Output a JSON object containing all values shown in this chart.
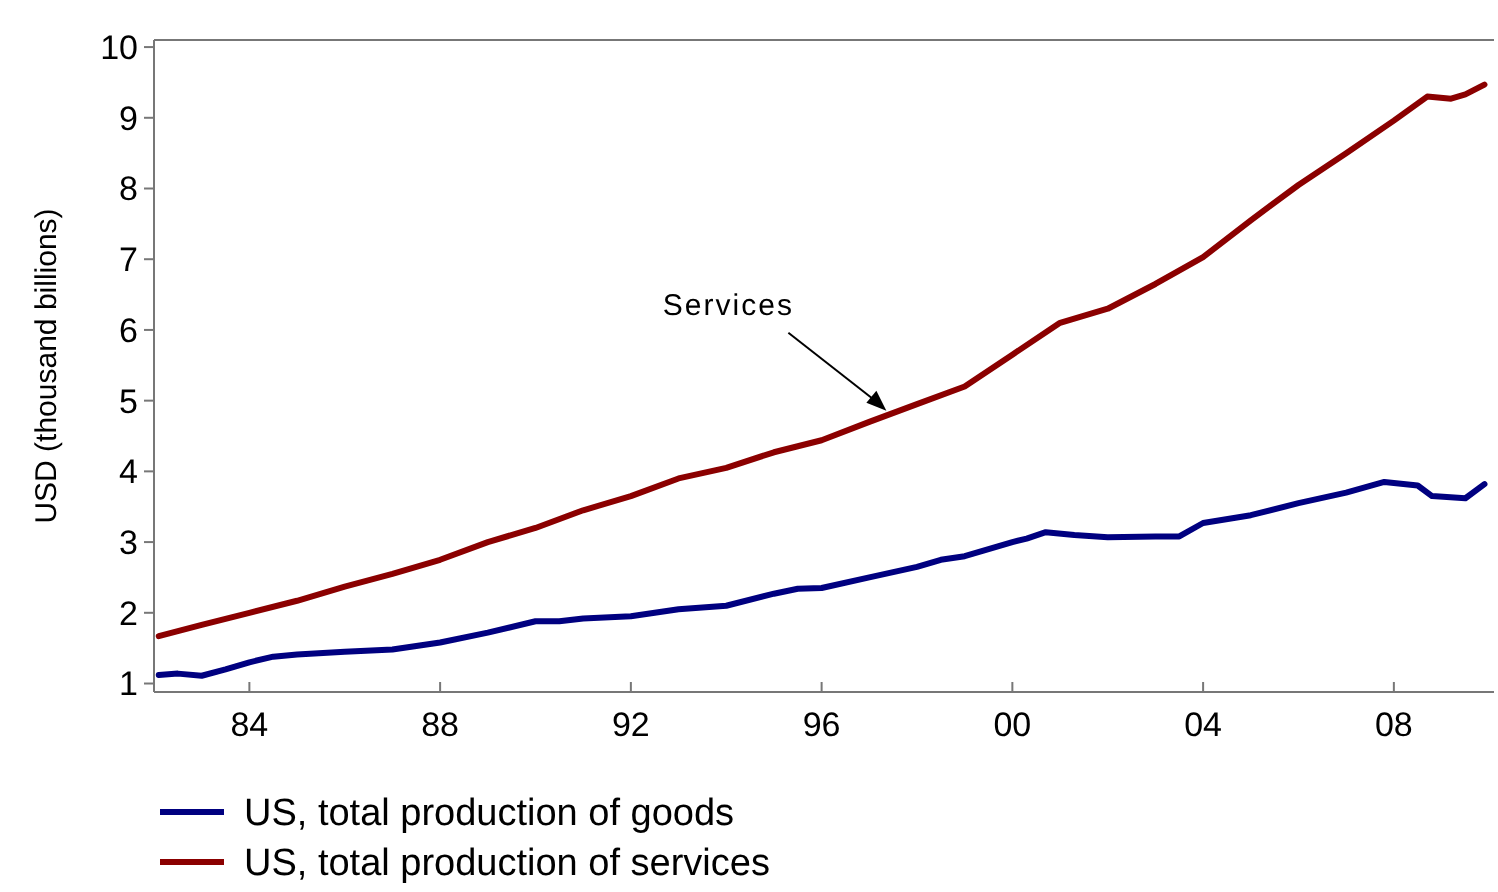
{
  "chart_data": {
    "type": "line",
    "ylabel": "USD (thousand billions)",
    "xlim": [
      1982,
      2010.1
    ],
    "ylim": [
      0.88,
      10.1
    ],
    "xticks": [
      {
        "value": 1984,
        "label": "84"
      },
      {
        "value": 1988,
        "label": "88"
      },
      {
        "value": 1992,
        "label": "92"
      },
      {
        "value": 1996,
        "label": "96"
      },
      {
        "value": 2000,
        "label": "00"
      },
      {
        "value": 2004,
        "label": "04"
      },
      {
        "value": 2008,
        "label": "08"
      }
    ],
    "yticks": [
      1,
      2,
      3,
      4,
      5,
      6,
      7,
      8,
      9,
      10
    ],
    "grid": false,
    "legend": "bottom",
    "line_style": "solid",
    "marker": "none",
    "annotations": [
      {
        "text": "Services",
        "x": 1997.4,
        "y": 4.8
      }
    ],
    "series": [
      {
        "name": "US, total production of goods",
        "color": "#000080",
        "x": [
          1982.1,
          1982.5,
          1983,
          1983.5,
          1984,
          1984.5,
          1985,
          1986,
          1987,
          1988,
          1989,
          1990,
          1990.5,
          1991,
          1992,
          1993,
          1994,
          1995,
          1995.5,
          1996,
          1997,
          1998,
          1998.5,
          1999,
          2000,
          2000.3,
          2000.7,
          2001.3,
          2002,
          2003,
          2003.5,
          2004,
          2005,
          2006,
          2007,
          2007.8,
          2008.5,
          2008.8,
          2009.5,
          2009.9
        ],
        "values": [
          1.12,
          1.14,
          1.11,
          1.2,
          1.3,
          1.38,
          1.41,
          1.45,
          1.48,
          1.58,
          1.72,
          1.88,
          1.88,
          1.92,
          1.95,
          2.05,
          2.1,
          2.27,
          2.34,
          2.35,
          2.5,
          2.65,
          2.75,
          2.8,
          3.0,
          3.05,
          3.14,
          3.1,
          3.07,
          3.08,
          3.08,
          3.27,
          3.38,
          3.55,
          3.7,
          3.85,
          3.8,
          3.65,
          3.62,
          3.82
        ]
      },
      {
        "name": "US, total production of services",
        "color": "#8b0000",
        "x": [
          1982.1,
          1983,
          1984,
          1985,
          1986,
          1987,
          1988,
          1989,
          1990,
          1991,
          1992,
          1993,
          1994,
          1995,
          1996,
          1997,
          1998,
          1999,
          2000,
          2001,
          2002,
          2003,
          2004,
          2005,
          2006,
          2007,
          2008,
          2008.7,
          2009.2,
          2009.5,
          2009.9
        ],
        "values": [
          1.67,
          1.83,
          2.0,
          2.17,
          2.37,
          2.55,
          2.75,
          3.0,
          3.2,
          3.45,
          3.65,
          3.9,
          4.05,
          4.27,
          4.44,
          4.7,
          4.95,
          5.2,
          5.65,
          6.1,
          6.3,
          6.65,
          7.03,
          7.55,
          8.05,
          8.5,
          8.96,
          9.3,
          9.27,
          9.33,
          9.47
        ]
      }
    ]
  }
}
